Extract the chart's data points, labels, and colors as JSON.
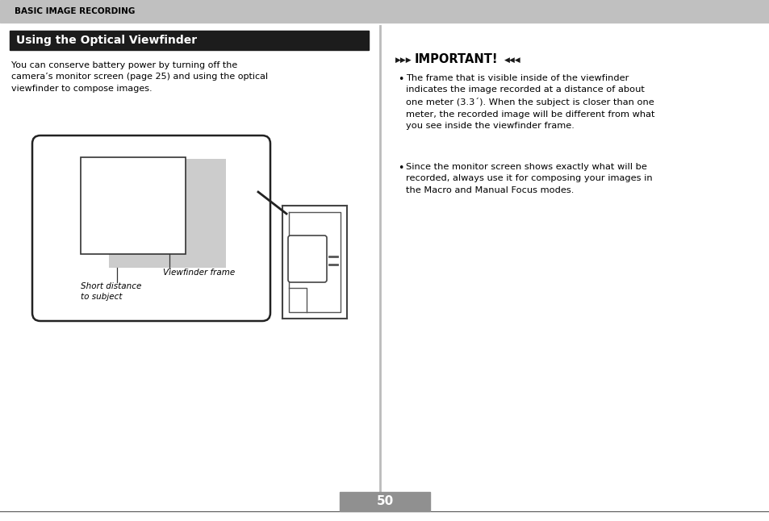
{
  "page_bg": "#ffffff",
  "header_bg": "#c0c0c0",
  "header_text": "BASIC IMAGE RECORDING",
  "header_text_color": "#000000",
  "title_bg": "#1c1c1c",
  "title_text": "Using the Optical Viewfinder",
  "title_text_color": "#ffffff",
  "body_text": "You can conserve battery power by turning off the\ncamera’s monitor screen (page 25) and using the optical\nviewfinder to compose images.",
  "important_header": "IMPORTANT!",
  "bullet1": "The frame that is visible inside of the viewfinder\nindicates the image recorded at a distance of about\none meter (3.3´). When the subject is closer than one\nmeter, the recorded image will be different from what\nyou see inside the viewfinder frame.",
  "bullet2": "Since the monitor screen shows exactly what will be\nrecorded, always use it for composing your images in\nthe Macro and Manual Focus modes.",
  "label_left": "Short distance\nto subject",
  "label_right": "Viewfinder frame",
  "page_number": "50",
  "footer_bg": "#909090"
}
